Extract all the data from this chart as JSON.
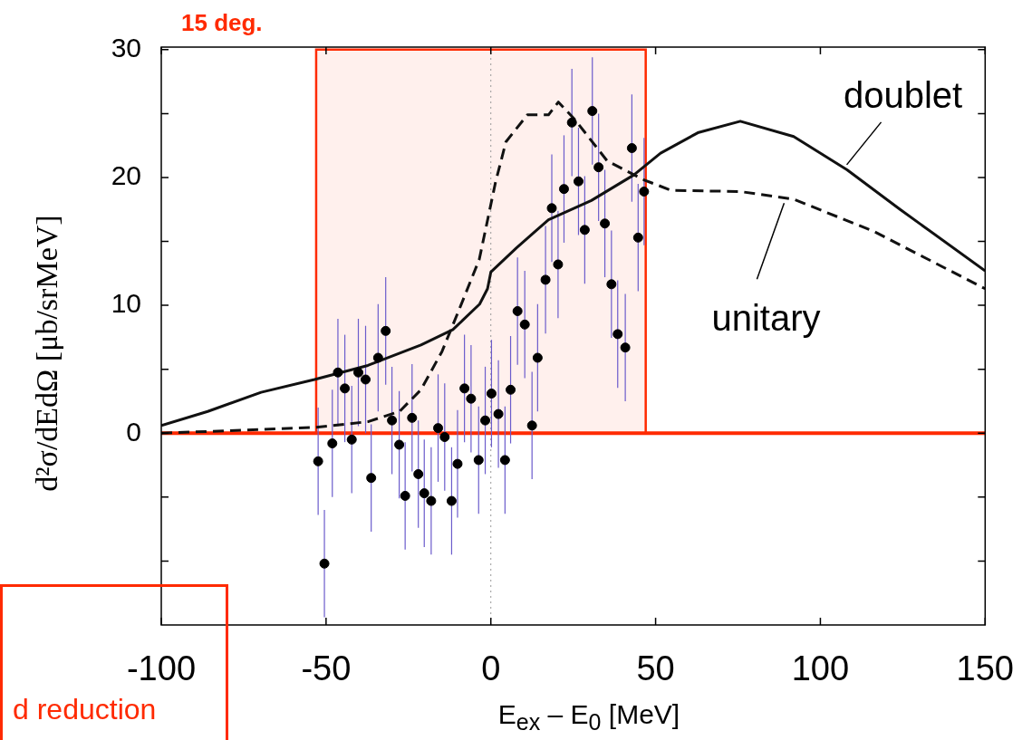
{
  "chart_data": {
    "type": "line",
    "title": "15 deg.",
    "xlabel": "E$_{ex}$ – E$_{0}$ [MeV]",
    "ylabel": "d²σ/dEdΩ [μb/srMeV]",
    "xlim": [
      -100,
      150
    ],
    "xticks": [
      -100,
      -50,
      0,
      50,
      100,
      150
    ],
    "ylim": [
      -15,
      30.2
    ],
    "yticks": [
      {
        "value": -10,
        "label": null
      },
      {
        "value": -5,
        "label": null
      },
      0,
      {
        "value": 5,
        "label": null
      },
      10,
      {
        "value": 15,
        "label": null
      },
      20,
      {
        "value": 25,
        "label": null
      },
      30
    ],
    "series": [
      {
        "color": "#111111",
        "line_style": "solid",
        "marker": "none",
        "x": [
          -100,
          -85.9,
          -69.7,
          -53.5,
          -37.3,
          -21.2,
          -11.5,
          -3.4,
          -1,
          0,
          7.8,
          17.5,
          30.5,
          43.4,
          51.5,
          62.8,
          75.7,
          91.9,
          108.1,
          124.2,
          150
        ],
        "values": [
          0.6,
          1.7,
          3.2,
          4.2,
          5.3,
          6.9,
          8.1,
          10.1,
          11.3,
          12.6,
          14.5,
          16.7,
          18.2,
          20.2,
          21.9,
          23.5,
          24.4,
          23.2,
          20.6,
          17.5,
          12.7
        ]
      },
      {
        "color": "#111111",
        "line_style": "dashed",
        "marker": "none",
        "x": [
          -100,
          -53.5,
          -37.3,
          -27.7,
          -21.2,
          -14.8,
          -9.1,
          -3.5,
          1.4,
          4.6,
          11.1,
          17.5,
          20.5,
          25.6,
          35.3,
          46.6,
          54.7,
          75.7,
          91.9,
          116.1,
          150
        ],
        "values": [
          0,
          0.45,
          0.9,
          1.7,
          3.4,
          6.4,
          10,
          13.6,
          19.6,
          22.8,
          24.9,
          24.9,
          25.9,
          24.5,
          21.3,
          19.8,
          19,
          18.9,
          18.3,
          15.8,
          11.3
        ]
      },
      {
        "type": "scatter",
        "color": "#000000",
        "marker": "circle",
        "x": [
          -52.4,
          -50.5,
          -48.1,
          -46.4,
          -44.3,
          -42.2,
          -40.2,
          -38,
          -36.3,
          -34.2,
          -31.9,
          -30,
          -27.8,
          -26,
          -23.9,
          -22,
          -20.2,
          -18.1,
          -16,
          -14,
          -11.9,
          -10.1,
          -8,
          -6,
          -3.7,
          -1.7,
          0.2,
          2.3,
          4.3,
          6,
          8.1,
          10.3,
          12.5,
          14.2,
          16.6,
          18.5,
          20.4,
          22.2,
          24.6,
          26.6,
          28.5,
          30.8,
          32.7,
          34.6,
          36.6,
          38.5,
          40.8,
          42.8,
          44.7,
          46.5
        ],
        "values": [
          -2.2,
          -10.2,
          -0.8,
          4.75,
          3.5,
          -0.5,
          4.75,
          4.2,
          -3.5,
          5.9,
          8,
          1,
          -0.9,
          -4.9,
          1.2,
          -3.2,
          -4.7,
          -5.3,
          0.4,
          -0.3,
          -5.3,
          -2.4,
          3.5,
          2.7,
          -2.1,
          1,
          3.1,
          1.5,
          -2.1,
          3.4,
          9.55,
          8.5,
          0.6,
          5.9,
          12,
          17.6,
          13.2,
          19.1,
          24.3,
          19.7,
          15.9,
          25.2,
          20.8,
          16.4,
          11.65,
          7.75,
          6.7,
          22.3,
          15.3,
          18.9
        ],
        "errors": [
          4.2,
          4.2,
          4.2,
          4.2,
          4.2,
          4.2,
          4.2,
          4.2,
          4.2,
          4.2,
          4.2,
          4.2,
          4.2,
          4.2,
          4.2,
          4.2,
          4.2,
          4.2,
          4.2,
          4.2,
          4.2,
          4.2,
          4.2,
          4.2,
          4.2,
          4.2,
          4.2,
          4.2,
          4.2,
          4.2,
          4.2,
          4.2,
          4.2,
          4.2,
          4.2,
          4.2,
          4.2,
          4.2,
          4.2,
          4.2,
          4.2,
          4.2,
          4.2,
          4.2,
          4.2,
          4.2,
          4.2,
          4.2,
          4.2,
          4.2
        ]
      }
    ],
    "ref_lines": [
      {
        "axis": "y",
        "value": 0,
        "color": "#ff2a00",
        "line_style": "solid"
      },
      {
        "axis": "x",
        "value": 0,
        "color": "#999999",
        "line_style": "dotted"
      }
    ],
    "bands": [
      {
        "axis": "x",
        "from": -53,
        "to": 47,
        "color": "#ff2a00"
      }
    ],
    "annotations": [
      {
        "text": "doublet",
        "x": 108,
        "y": 21
      },
      {
        "text": "unitary",
        "x": 89,
        "y": 18
      },
      "d reduction"
    ]
  }
}
